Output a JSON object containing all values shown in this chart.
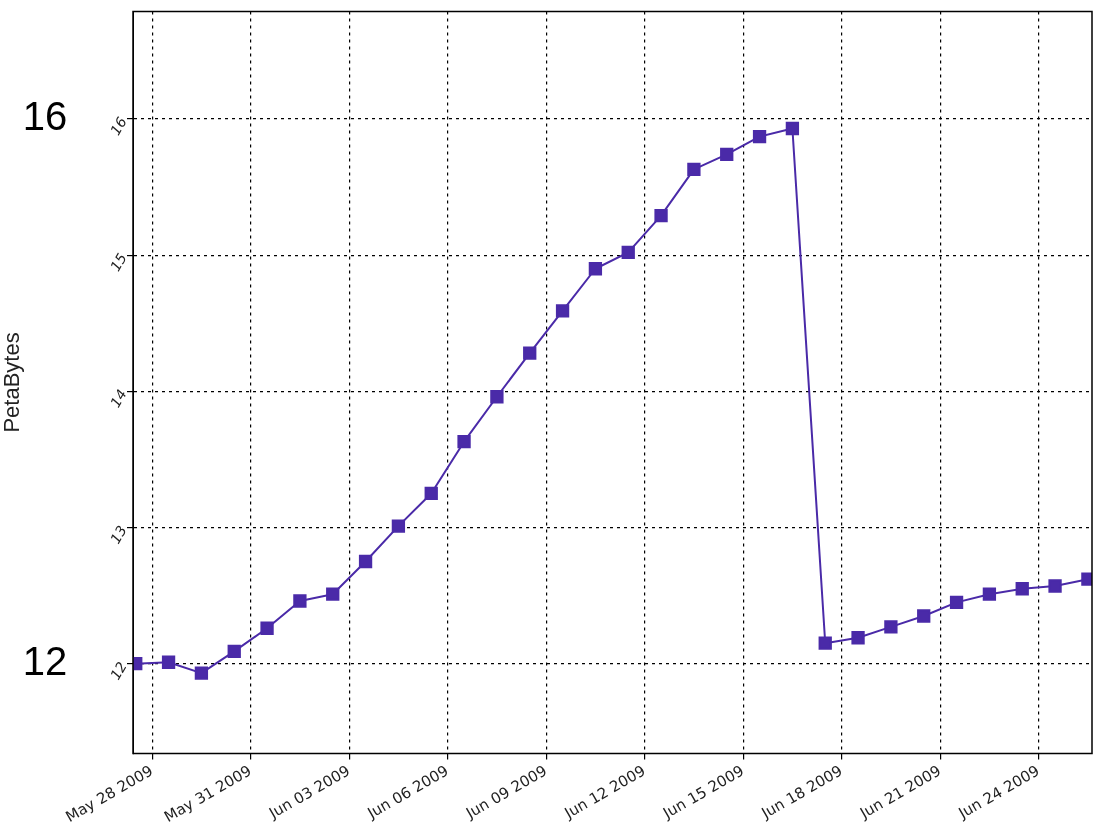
{
  "chart_data": {
    "type": "line",
    "ylabel": "PetaBytes",
    "x": [
      "2009-05-27T12:00",
      "2009-05-28T12:00",
      "2009-05-29T12:00",
      "2009-05-30T12:00",
      "2009-05-31T12:00",
      "2009-06-01T12:00",
      "2009-06-02T12:00",
      "2009-06-03T12:00",
      "2009-06-04T12:00",
      "2009-06-05T12:00",
      "2009-06-06T12:00",
      "2009-06-07T12:00",
      "2009-06-08T12:00",
      "2009-06-09T12:00",
      "2009-06-10T12:00",
      "2009-06-11T12:00",
      "2009-06-12T12:00",
      "2009-06-13T12:00",
      "2009-06-14T12:00",
      "2009-06-15T12:00",
      "2009-06-16T12:00",
      "2009-06-17T12:00",
      "2009-06-18T12:00",
      "2009-06-19T12:00",
      "2009-06-20T12:00",
      "2009-06-21T12:00",
      "2009-06-22T12:00",
      "2009-06-23T12:00",
      "2009-06-24T12:00",
      "2009-06-25T12:00"
    ],
    "series": [
      {
        "color": "#4a2aa8",
        "values": [
          12.0,
          12.01,
          11.93,
          12.09,
          12.26,
          12.46,
          12.51,
          12.75,
          13.01,
          13.25,
          13.63,
          13.96,
          14.28,
          14.59,
          14.9,
          15.02,
          15.29,
          15.63,
          15.74,
          15.87,
          15.93,
          12.15,
          12.19,
          12.27,
          12.35,
          12.45,
          12.51,
          12.55,
          12.57,
          12.62
        ]
      }
    ],
    "xlim": [
      "2009-05-27T10:00",
      "2009-06-25T15:00"
    ],
    "xticks": [
      {
        "value": "2009-05-28",
        "label": "May 28 2009"
      },
      {
        "value": "2009-05-31",
        "label": "May 31 2009"
      },
      {
        "value": "2009-06-03",
        "label": "Jun 03 2009"
      },
      {
        "value": "2009-06-06",
        "label": "Jun 06 2009"
      },
      {
        "value": "2009-06-09",
        "label": "Jun 09 2009"
      },
      {
        "value": "2009-06-12",
        "label": "Jun 12 2009"
      },
      {
        "value": "2009-06-15",
        "label": "Jun 15 2009"
      },
      {
        "value": "2009-06-18",
        "label": "Jun 18 2009"
      },
      {
        "value": "2009-06-21",
        "label": "Jun 21 2009"
      },
      {
        "value": "2009-06-24",
        "label": "Jun 24 2009"
      }
    ],
    "ylim": [
      11.34,
      16.79
    ],
    "yticks": [
      12,
      13,
      14,
      15,
      16
    ],
    "annotations": [
      "16",
      "12"
    ],
    "grid": true,
    "marker": "square",
    "line_style": "solid",
    "legend": false
  }
}
